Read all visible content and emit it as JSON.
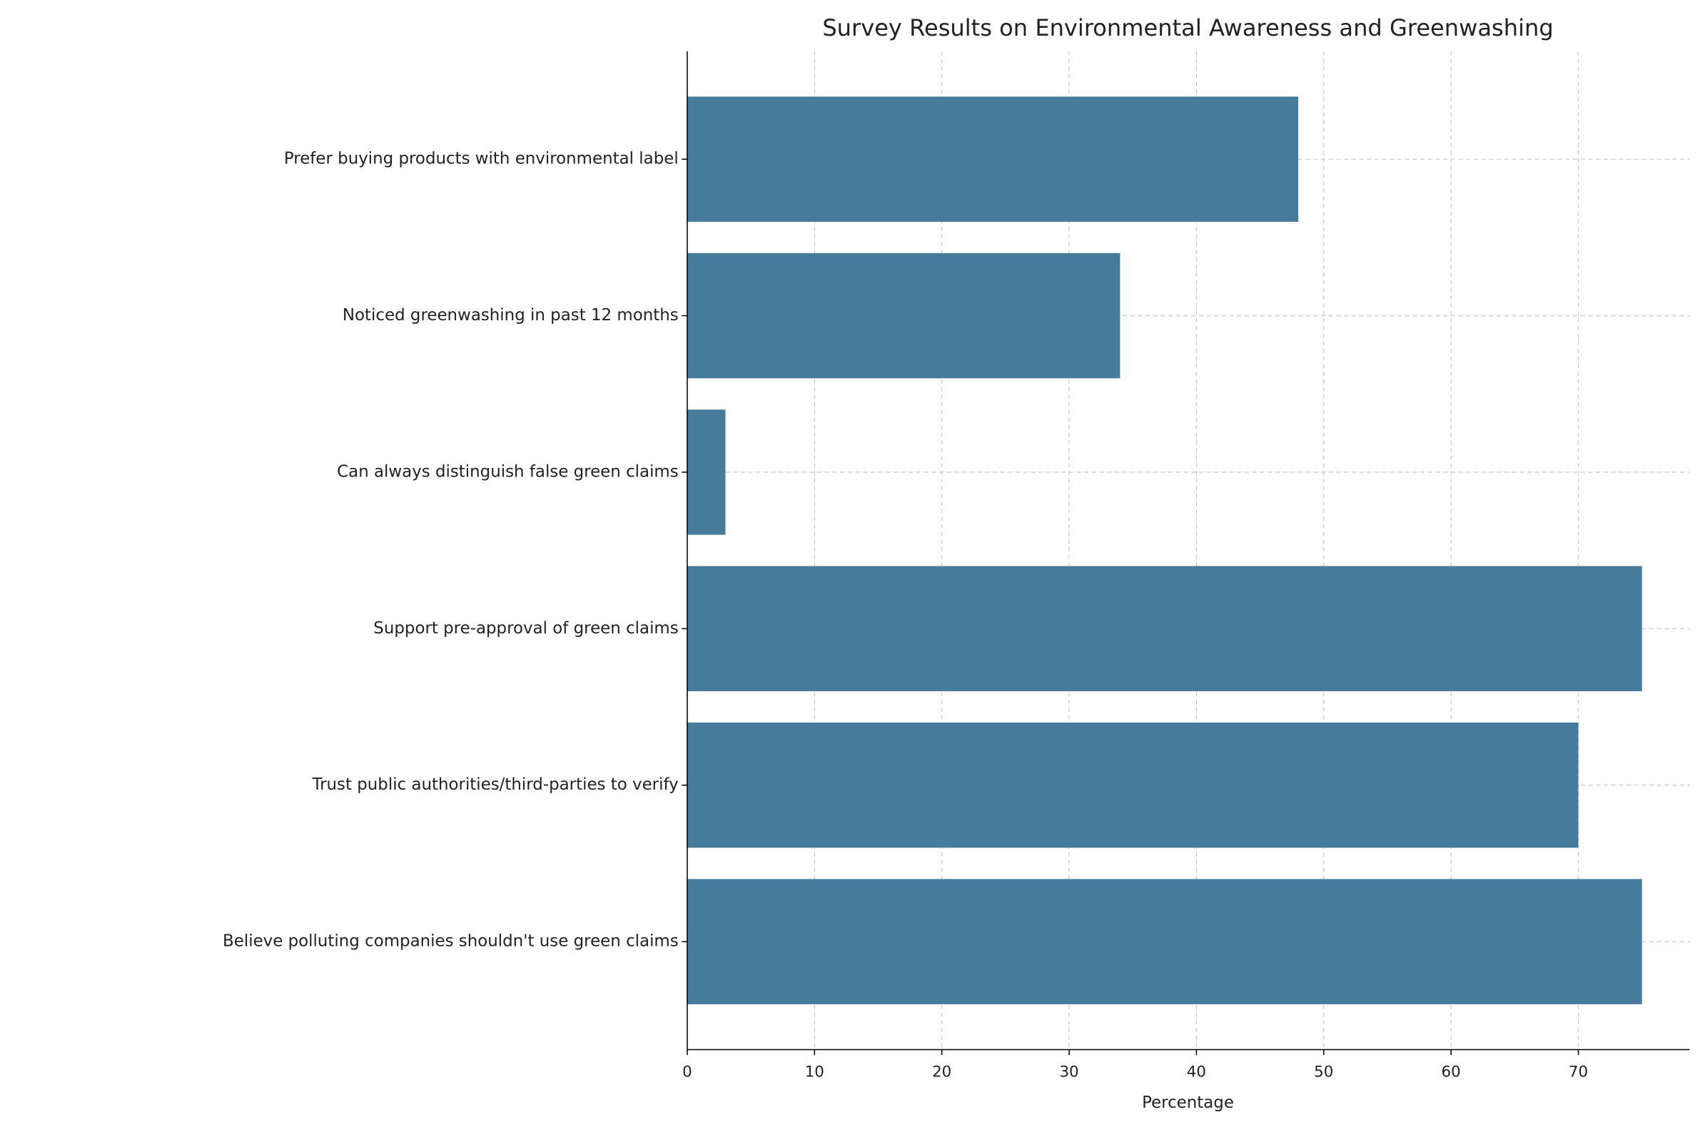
{
  "chart_data": {
    "type": "barh",
    "title": "Survey Results on Environmental Awareness and Greenwashing",
    "x_label": "Percentage",
    "categories": [
      "Believe polluting companies shouldn't use green claims",
      "Trust public authorities/third-parties to verify",
      "Support pre-approval of green claims",
      "Can always distinguish false green claims",
      "Noticed greenwashing in past 12 months",
      "Prefer buying products with environmental label"
    ],
    "values": [
      75,
      70,
      75,
      3,
      34,
      48
    ],
    "color": "#467b9c",
    "xlim": [
      0,
      78.75
    ],
    "xticks": [
      0,
      10,
      20,
      30,
      40,
      50,
      60,
      70
    ],
    "grid": true
  }
}
